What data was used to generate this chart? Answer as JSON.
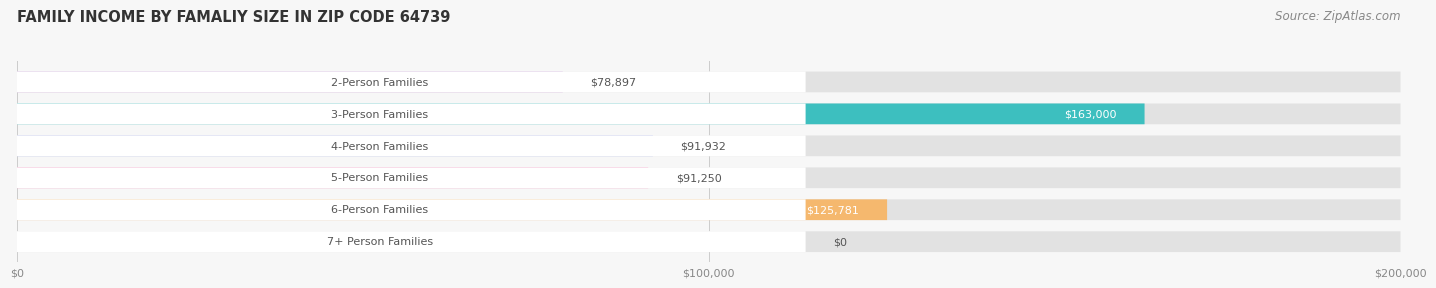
{
  "title": "FAMILY INCOME BY FAMALIY SIZE IN ZIP CODE 64739",
  "source": "Source: ZipAtlas.com",
  "categories": [
    "2-Person Families",
    "3-Person Families",
    "4-Person Families",
    "5-Person Families",
    "6-Person Families",
    "7+ Person Families"
  ],
  "values": [
    78897,
    163000,
    91932,
    91250,
    125781,
    0
  ],
  "bar_colors": [
    "#c9a0d8",
    "#3dbfbf",
    "#a8aee8",
    "#f07ab0",
    "#f5b86e",
    "#f5a8a8"
  ],
  "value_labels": [
    "$78,897",
    "$163,000",
    "$91,932",
    "$91,250",
    "$125,781",
    "$0"
  ],
  "label_inside": [
    false,
    true,
    false,
    false,
    true,
    false
  ],
  "xlim": [
    0,
    200000
  ],
  "xticks": [
    0,
    100000,
    200000
  ],
  "xtick_labels": [
    "$0",
    "$100,000",
    "$200,000"
  ],
  "bar_height": 0.65,
  "background_color": "#f7f7f7",
  "bar_bg_color": "#e2e2e2",
  "title_color": "#333333",
  "title_fontsize": 10.5,
  "source_fontsize": 8.5,
  "label_fontsize": 8,
  "value_fontsize": 8
}
